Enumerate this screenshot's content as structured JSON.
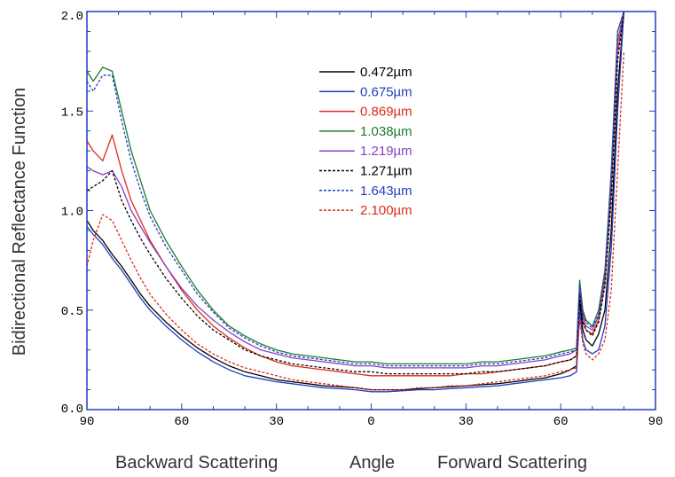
{
  "chart_data": {
    "type": "line",
    "ylabel": "Bidirectional Reflectance Function",
    "xlabels": {
      "left": "Backward Scattering",
      "center": "Angle",
      "right": "Forward Scattering"
    },
    "xlim": [
      -90,
      90
    ],
    "ylim": [
      0,
      2.0
    ],
    "x_tick_labels": [
      "90",
      "60",
      "30",
      "0",
      "30",
      "60",
      "90"
    ],
    "y_tick_labels": [
      "0.0",
      "0.5",
      "1.0",
      "1.5",
      "2.0"
    ],
    "legend_position": "top-center",
    "x": [
      -90,
      -88,
      -85,
      -82,
      -79,
      -76,
      -73,
      -70,
      -65,
      -60,
      -55,
      -50,
      -45,
      -40,
      -35,
      -30,
      -25,
      -20,
      -15,
      -10,
      -5,
      0,
      5,
      10,
      15,
      20,
      25,
      30,
      35,
      40,
      45,
      50,
      55,
      60,
      63,
      65,
      66,
      67,
      68,
      70,
      72,
      74,
      76,
      78,
      80
    ],
    "series": [
      {
        "name": "0.472µm",
        "color": "#000000",
        "dash": "solid",
        "values": [
          0.95,
          0.9,
          0.85,
          0.78,
          0.72,
          0.65,
          0.58,
          0.52,
          0.44,
          0.37,
          0.31,
          0.26,
          0.22,
          0.19,
          0.17,
          0.15,
          0.14,
          0.13,
          0.12,
          0.115,
          0.11,
          0.1,
          0.1,
          0.1,
          0.105,
          0.11,
          0.115,
          0.12,
          0.125,
          0.13,
          0.14,
          0.15,
          0.16,
          0.18,
          0.2,
          0.22,
          0.55,
          0.4,
          0.35,
          0.32,
          0.38,
          0.5,
          0.9,
          1.6,
          2.0
        ]
      },
      {
        "name": "0.675µm",
        "color": "#1f3fbf",
        "dash": "solid",
        "values": [
          0.92,
          0.88,
          0.83,
          0.76,
          0.7,
          0.63,
          0.56,
          0.5,
          0.42,
          0.35,
          0.29,
          0.24,
          0.2,
          0.17,
          0.155,
          0.14,
          0.13,
          0.12,
          0.11,
          0.105,
          0.1,
          0.09,
          0.09,
          0.095,
          0.1,
          0.1,
          0.105,
          0.11,
          0.115,
          0.12,
          0.13,
          0.14,
          0.15,
          0.16,
          0.17,
          0.19,
          0.5,
          0.35,
          0.3,
          0.28,
          0.3,
          0.42,
          0.8,
          1.5,
          2.0
        ]
      },
      {
        "name": "0.869µm",
        "color": "#e02a1a",
        "dash": "solid",
        "values": [
          1.35,
          1.3,
          1.25,
          1.38,
          1.2,
          1.05,
          0.95,
          0.85,
          0.72,
          0.6,
          0.5,
          0.42,
          0.36,
          0.31,
          0.27,
          0.24,
          0.22,
          0.21,
          0.2,
          0.19,
          0.18,
          0.17,
          0.17,
          0.17,
          0.17,
          0.17,
          0.17,
          0.18,
          0.18,
          0.19,
          0.2,
          0.21,
          0.22,
          0.24,
          0.25,
          0.27,
          0.6,
          0.45,
          0.4,
          0.38,
          0.45,
          0.65,
          1.1,
          1.8,
          2.0
        ]
      },
      {
        "name": "1.038µm",
        "color": "#1f7a2e",
        "dash": "solid",
        "values": [
          1.7,
          1.65,
          1.72,
          1.7,
          1.5,
          1.3,
          1.15,
          1.0,
          0.85,
          0.72,
          0.6,
          0.5,
          0.42,
          0.37,
          0.33,
          0.3,
          0.28,
          0.27,
          0.26,
          0.25,
          0.24,
          0.24,
          0.23,
          0.23,
          0.23,
          0.23,
          0.23,
          0.23,
          0.24,
          0.24,
          0.25,
          0.26,
          0.27,
          0.29,
          0.3,
          0.31,
          0.65,
          0.5,
          0.45,
          0.42,
          0.5,
          0.7,
          1.2,
          1.9,
          2.0
        ]
      },
      {
        "name": "1.219µm",
        "color": "#8a3fc4",
        "dash": "solid",
        "values": [
          1.22,
          1.2,
          1.18,
          1.2,
          1.12,
          1.0,
          0.92,
          0.84,
          0.72,
          0.61,
          0.52,
          0.45,
          0.39,
          0.34,
          0.3,
          0.28,
          0.26,
          0.25,
          0.24,
          0.23,
          0.22,
          0.22,
          0.21,
          0.21,
          0.21,
          0.21,
          0.21,
          0.21,
          0.22,
          0.22,
          0.23,
          0.24,
          0.25,
          0.27,
          0.28,
          0.3,
          0.62,
          0.48,
          0.42,
          0.4,
          0.47,
          0.67,
          1.15,
          1.85,
          2.0
        ]
      },
      {
        "name": "1.271µm",
        "color": "#000000",
        "dash": "dashed",
        "values": [
          1.1,
          1.12,
          1.15,
          1.2,
          1.05,
          0.95,
          0.86,
          0.78,
          0.66,
          0.56,
          0.47,
          0.4,
          0.35,
          0.3,
          0.27,
          0.25,
          0.23,
          0.22,
          0.21,
          0.2,
          0.19,
          0.19,
          0.18,
          0.18,
          0.18,
          0.18,
          0.18,
          0.18,
          0.19,
          0.19,
          0.2,
          0.21,
          0.22,
          0.24,
          0.25,
          0.27,
          0.58,
          0.44,
          0.4,
          0.37,
          0.44,
          0.62,
          1.05,
          1.75,
          2.0
        ]
      },
      {
        "name": "1.643µm",
        "color": "#1f3fbf",
        "dash": "dashed",
        "values": [
          1.65,
          1.6,
          1.68,
          1.68,
          1.45,
          1.25,
          1.1,
          0.97,
          0.82,
          0.7,
          0.58,
          0.49,
          0.41,
          0.36,
          0.32,
          0.29,
          0.27,
          0.26,
          0.25,
          0.24,
          0.23,
          0.23,
          0.22,
          0.22,
          0.22,
          0.22,
          0.22,
          0.22,
          0.23,
          0.23,
          0.24,
          0.25,
          0.26,
          0.28,
          0.29,
          0.3,
          0.63,
          0.48,
          0.44,
          0.41,
          0.48,
          0.68,
          1.15,
          1.9,
          2.0
        ]
      },
      {
        "name": "2.100µm",
        "color": "#e02a1a",
        "dash": "dashed",
        "values": [
          0.72,
          0.85,
          0.98,
          0.95,
          0.85,
          0.75,
          0.66,
          0.58,
          0.48,
          0.4,
          0.33,
          0.28,
          0.24,
          0.21,
          0.19,
          0.17,
          0.15,
          0.14,
          0.13,
          0.12,
          0.11,
          0.1,
          0.1,
          0.1,
          0.11,
          0.11,
          0.12,
          0.12,
          0.13,
          0.14,
          0.15,
          0.16,
          0.17,
          0.19,
          0.2,
          0.21,
          0.45,
          0.33,
          0.28,
          0.25,
          0.28,
          0.35,
          0.6,
          1.2,
          1.8
        ]
      }
    ]
  }
}
